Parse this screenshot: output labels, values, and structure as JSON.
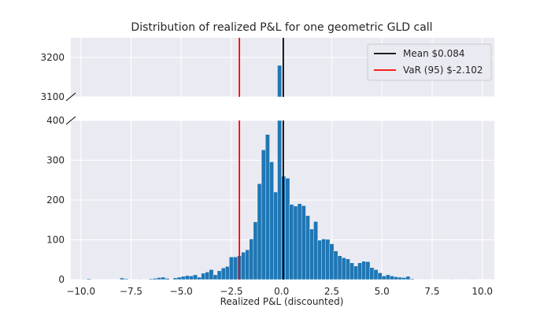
{
  "chart_data": {
    "type": "bar",
    "title": "Distribution of realized P&L for one geometric GLD call",
    "xlabel": "Realized P&L (discounted)",
    "ylabel": "",
    "xlim": [
      -10.5,
      10.6
    ],
    "xticks": [
      -10.0,
      -7.5,
      -5.0,
      -2.5,
      0.0,
      2.5,
      5.0,
      7.5,
      10.0
    ],
    "xtick_labels": [
      "−10.0",
      "−7.5",
      "−5.0",
      "−2.5",
      "0.0",
      "2.5",
      "5.0",
      "7.5",
      "10.0"
    ],
    "broken_y_axis": {
      "upper_ylim": [
        3100,
        3250
      ],
      "upper_ticks": [
        3100,
        3200
      ],
      "lower_ylim": [
        0,
        400
      ],
      "lower_ticks": [
        0,
        100,
        200,
        300,
        400
      ]
    },
    "grid": true,
    "legend_position": "top-right",
    "bin_width": 0.21,
    "bins": [
      {
        "x": -9.85,
        "v": 1
      },
      {
        "x": -9.6,
        "v": 2
      },
      {
        "x": -7.95,
        "v": 4
      },
      {
        "x": -7.75,
        "v": 2
      },
      {
        "x": -7.1,
        "v": 1
      },
      {
        "x": -6.5,
        "v": 2
      },
      {
        "x": -6.3,
        "v": 3
      },
      {
        "x": -6.1,
        "v": 5
      },
      {
        "x": -5.9,
        "v": 6
      },
      {
        "x": -5.7,
        "v": 3
      },
      {
        "x": -5.3,
        "v": 4
      },
      {
        "x": -5.1,
        "v": 6
      },
      {
        "x": -4.9,
        "v": 8
      },
      {
        "x": -4.7,
        "v": 10
      },
      {
        "x": -4.5,
        "v": 9
      },
      {
        "x": -4.3,
        "v": 12
      },
      {
        "x": -4.1,
        "v": 6
      },
      {
        "x": -3.9,
        "v": 16
      },
      {
        "x": -3.7,
        "v": 19
      },
      {
        "x": -3.5,
        "v": 25
      },
      {
        "x": -3.3,
        "v": 12
      },
      {
        "x": -3.1,
        "v": 22
      },
      {
        "x": -2.9,
        "v": 29
      },
      {
        "x": -2.7,
        "v": 33
      },
      {
        "x": -2.5,
        "v": 57
      },
      {
        "x": -2.3,
        "v": 57
      },
      {
        "x": -2.1,
        "v": 60
      },
      {
        "x": -1.9,
        "v": 69
      },
      {
        "x": -1.7,
        "v": 75
      },
      {
        "x": -1.5,
        "v": 102
      },
      {
        "x": -1.3,
        "v": 145
      },
      {
        "x": -1.1,
        "v": 241
      },
      {
        "x": -0.9,
        "v": 326
      },
      {
        "x": -0.7,
        "v": 365
      },
      {
        "x": -0.5,
        "v": 296
      },
      {
        "x": -0.3,
        "v": 220
      },
      {
        "x": -0.1,
        "v": 3180
      },
      {
        "x": 0.1,
        "v": 260
      },
      {
        "x": 0.3,
        "v": 255
      },
      {
        "x": 0.5,
        "v": 189
      },
      {
        "x": 0.7,
        "v": 185
      },
      {
        "x": 0.9,
        "v": 191
      },
      {
        "x": 1.1,
        "v": 186
      },
      {
        "x": 1.3,
        "v": 161
      },
      {
        "x": 1.5,
        "v": 127
      },
      {
        "x": 1.7,
        "v": 146
      },
      {
        "x": 1.9,
        "v": 99
      },
      {
        "x": 2.1,
        "v": 102
      },
      {
        "x": 2.3,
        "v": 101
      },
      {
        "x": 2.5,
        "v": 90
      },
      {
        "x": 2.7,
        "v": 72
      },
      {
        "x": 2.9,
        "v": 60
      },
      {
        "x": 3.1,
        "v": 55
      },
      {
        "x": 3.3,
        "v": 52
      },
      {
        "x": 3.5,
        "v": 42
      },
      {
        "x": 3.7,
        "v": 34
      },
      {
        "x": 3.9,
        "v": 42
      },
      {
        "x": 4.1,
        "v": 46
      },
      {
        "x": 4.3,
        "v": 45
      },
      {
        "x": 4.5,
        "v": 30
      },
      {
        "x": 4.7,
        "v": 25
      },
      {
        "x": 4.9,
        "v": 17
      },
      {
        "x": 5.1,
        "v": 9
      },
      {
        "x": 5.3,
        "v": 12
      },
      {
        "x": 5.5,
        "v": 9
      },
      {
        "x": 5.7,
        "v": 7
      },
      {
        "x": 5.9,
        "v": 6
      },
      {
        "x": 6.1,
        "v": 5
      },
      {
        "x": 6.3,
        "v": 8
      },
      {
        "x": 6.5,
        "v": 2
      },
      {
        "x": 7.1,
        "v": 1
      },
      {
        "x": 8.5,
        "v": 1
      },
      {
        "x": 9.5,
        "v": 1
      }
    ],
    "vlines": [
      {
        "name": "Mean $0.084",
        "x": 0.084,
        "color": "#000000"
      },
      {
        "name": "VaR (95) $-2.102",
        "x": -2.102,
        "color": "#ff0000"
      }
    ],
    "bar_color": "#1f77b4"
  }
}
